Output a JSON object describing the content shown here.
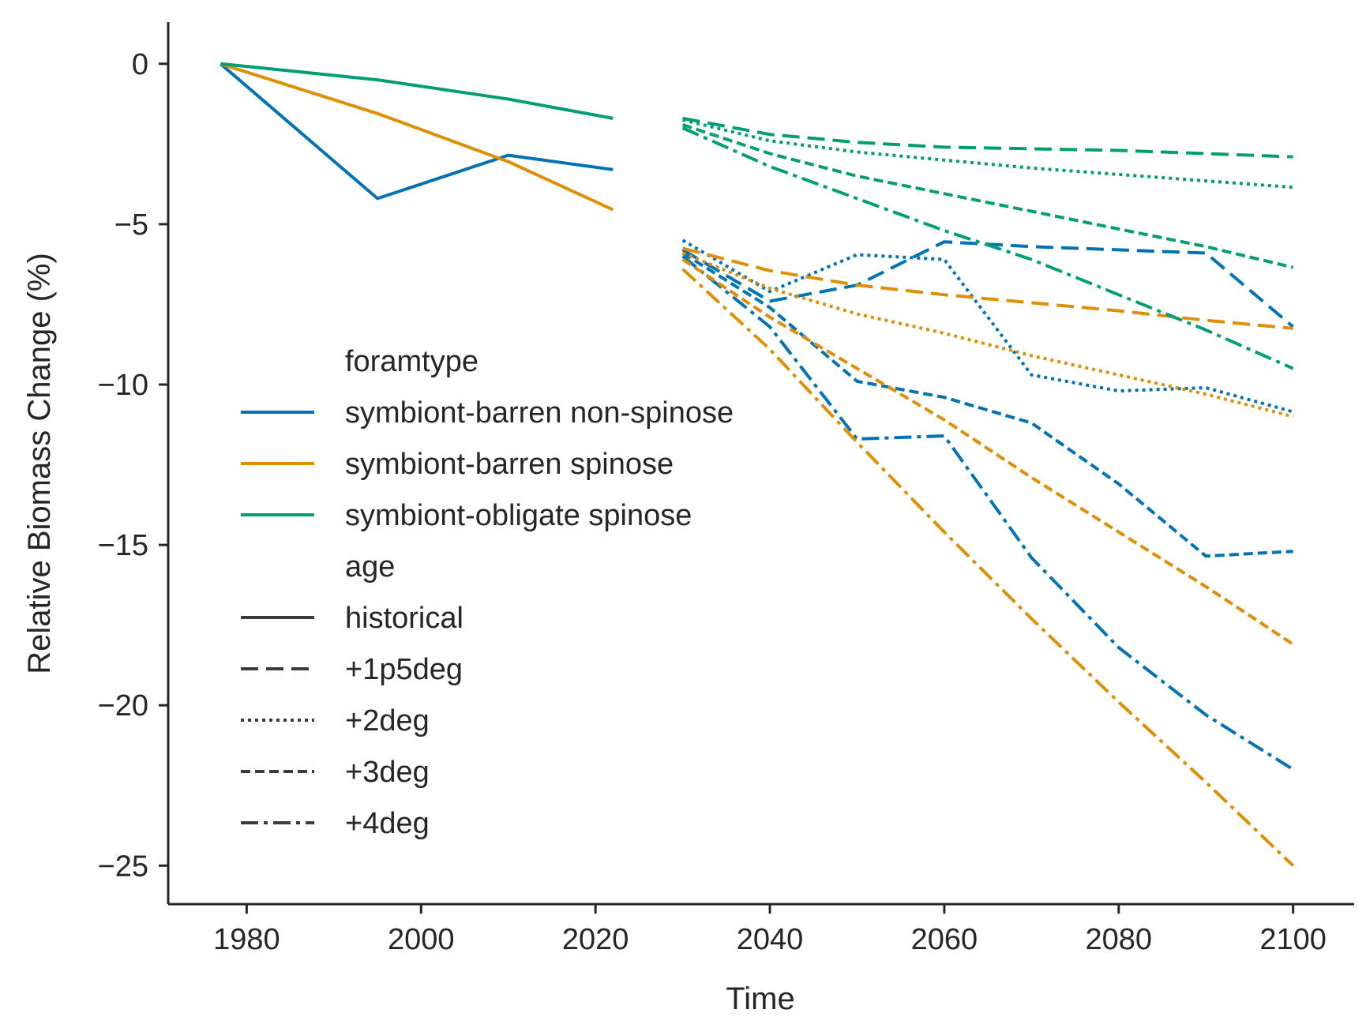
{
  "chart_data": {
    "type": "line",
    "xlabel": "Time",
    "ylabel": "Relative Biomass Change (%)",
    "xlim": [
      1971,
      2107
    ],
    "ylim": [
      -26.2,
      1.3
    ],
    "xticks": [
      1980,
      2000,
      2020,
      2040,
      2060,
      2080,
      2100
    ],
    "yticks": [
      0,
      -5,
      -10,
      -15,
      -20,
      -25
    ],
    "xtick_labels": [
      "1980",
      "2000",
      "2020",
      "2040",
      "2060",
      "2080",
      "2100"
    ],
    "ytick_labels": [
      "0",
      "−5",
      "−10",
      "−15",
      "−20",
      "−25"
    ],
    "grid": false,
    "legend": {
      "placement": "center-left",
      "hue_title": "foramtype",
      "style_title": "age",
      "hue_entries": [
        {
          "label": "symbiont-barren non-spinose",
          "color": "#0173b2"
        },
        {
          "label": "symbiont-barren spinose",
          "color": "#de8f05"
        },
        {
          "label": "symbiont-obligate spinose",
          "color": "#029e73"
        }
      ],
      "style_entries": [
        {
          "label": "historical",
          "dash": "solid"
        },
        {
          "label": "+1p5deg",
          "dash": "dashed"
        },
        {
          "label": "+2deg",
          "dash": "dotted"
        },
        {
          "label": "+3deg",
          "dash": "dense-dashed"
        },
        {
          "label": "+4deg",
          "dash": "dashdot"
        }
      ]
    },
    "series": [
      {
        "foramtype": "symbiont-barren non-spinose",
        "age": "historical",
        "color": "#0173b2",
        "dash": "solid",
        "x": [
          1977,
          1995,
          2010,
          2022
        ],
        "y": [
          0,
          -4.2,
          -2.85,
          -3.3
        ]
      },
      {
        "foramtype": "symbiont-barren spinose",
        "age": "historical",
        "color": "#de8f05",
        "dash": "solid",
        "x": [
          1977,
          1995,
          2010,
          2022
        ],
        "y": [
          0,
          -1.55,
          -3.05,
          -4.55
        ]
      },
      {
        "foramtype": "symbiont-obligate spinose",
        "age": "historical",
        "color": "#029e73",
        "dash": "solid",
        "x": [
          1977,
          1995,
          2010,
          2022
        ],
        "y": [
          0,
          -0.5,
          -1.1,
          -1.7
        ]
      },
      {
        "foramtype": "symbiont-barren non-spinose",
        "age": "+1p5deg",
        "color": "#0173b2",
        "dash": "dashed",
        "x": [
          2030,
          2040,
          2050,
          2060,
          2070,
          2080,
          2090,
          2100
        ],
        "y": [
          -5.8,
          -7.4,
          -6.9,
          -5.55,
          -5.7,
          -5.8,
          -5.9,
          -8.2
        ]
      },
      {
        "foramtype": "symbiont-barren non-spinose",
        "age": "+2deg",
        "color": "#0173b2",
        "dash": "dotted",
        "x": [
          2030,
          2040,
          2050,
          2060,
          2070,
          2080,
          2090,
          2100
        ],
        "y": [
          -5.5,
          -7.1,
          -5.95,
          -6.1,
          -9.7,
          -10.2,
          -10.1,
          -10.85
        ]
      },
      {
        "foramtype": "symbiont-barren non-spinose",
        "age": "+3deg",
        "color": "#0173b2",
        "dash": "dense-dashed",
        "x": [
          2030,
          2040,
          2050,
          2060,
          2070,
          2080,
          2090,
          2100
        ],
        "y": [
          -5.9,
          -7.6,
          -9.9,
          -10.4,
          -11.2,
          -13.1,
          -15.35,
          -15.2
        ]
      },
      {
        "foramtype": "symbiont-barren non-spinose",
        "age": "+4deg",
        "color": "#0173b2",
        "dash": "dashdot",
        "x": [
          2030,
          2040,
          2050,
          2060,
          2070,
          2080,
          2090,
          2100
        ],
        "y": [
          -6.0,
          -8.2,
          -11.7,
          -11.6,
          -15.4,
          -18.2,
          -20.3,
          -22.0
        ]
      },
      {
        "foramtype": "symbiont-barren spinose",
        "age": "+1p5deg",
        "color": "#de8f05",
        "dash": "dashed",
        "x": [
          2030,
          2040,
          2050,
          2060,
          2070,
          2080,
          2090,
          2100
        ],
        "y": [
          -5.75,
          -6.45,
          -6.9,
          -7.2,
          -7.45,
          -7.7,
          -8.0,
          -8.25
        ]
      },
      {
        "foramtype": "symbiont-barren spinose",
        "age": "+2deg",
        "color": "#de8f05",
        "dash": "dotted",
        "x": [
          2030,
          2040,
          2050,
          2060,
          2070,
          2080,
          2090,
          2100
        ],
        "y": [
          -5.9,
          -7.0,
          -7.8,
          -8.4,
          -9.1,
          -9.7,
          -10.3,
          -11.0
        ]
      },
      {
        "foramtype": "symbiont-barren spinose",
        "age": "+3deg",
        "color": "#de8f05",
        "dash": "dense-dashed",
        "x": [
          2030,
          2040,
          2050,
          2060,
          2070,
          2080,
          2090,
          2100
        ],
        "y": [
          -6.1,
          -7.9,
          -9.5,
          -11.1,
          -12.9,
          -14.6,
          -16.3,
          -18.1
        ]
      },
      {
        "foramtype": "symbiont-barren spinose",
        "age": "+4deg",
        "color": "#de8f05",
        "dash": "dashdot",
        "x": [
          2030,
          2040,
          2050,
          2060,
          2070,
          2080,
          2090,
          2100
        ],
        "y": [
          -6.4,
          -8.9,
          -11.8,
          -14.6,
          -17.3,
          -19.9,
          -22.4,
          -25.0
        ]
      },
      {
        "foramtype": "symbiont-obligate spinose",
        "age": "+1p5deg",
        "color": "#029e73",
        "dash": "dashed",
        "x": [
          2030,
          2040,
          2050,
          2060,
          2070,
          2080,
          2090,
          2100
        ],
        "y": [
          -1.7,
          -2.2,
          -2.45,
          -2.6,
          -2.65,
          -2.7,
          -2.8,
          -2.9
        ]
      },
      {
        "foramtype": "symbiont-obligate spinose",
        "age": "+2deg",
        "color": "#029e73",
        "dash": "dotted",
        "x": [
          2030,
          2040,
          2050,
          2060,
          2070,
          2080,
          2090,
          2100
        ],
        "y": [
          -1.75,
          -2.4,
          -2.75,
          -3.0,
          -3.25,
          -3.45,
          -3.65,
          -3.85
        ]
      },
      {
        "foramtype": "symbiont-obligate spinose",
        "age": "+3deg",
        "color": "#029e73",
        "dash": "dense-dashed",
        "x": [
          2030,
          2040,
          2050,
          2060,
          2070,
          2080,
          2090,
          2100
        ],
        "y": [
          -1.9,
          -2.8,
          -3.5,
          -4.05,
          -4.6,
          -5.15,
          -5.7,
          -6.35
        ]
      },
      {
        "foramtype": "symbiont-obligate spinose",
        "age": "+4deg",
        "color": "#029e73",
        "dash": "dashdot",
        "x": [
          2030,
          2040,
          2050,
          2060,
          2070,
          2080,
          2090,
          2100
        ],
        "y": [
          -2.0,
          -3.2,
          -4.2,
          -5.2,
          -6.1,
          -7.2,
          -8.3,
          -9.5
        ]
      }
    ]
  }
}
